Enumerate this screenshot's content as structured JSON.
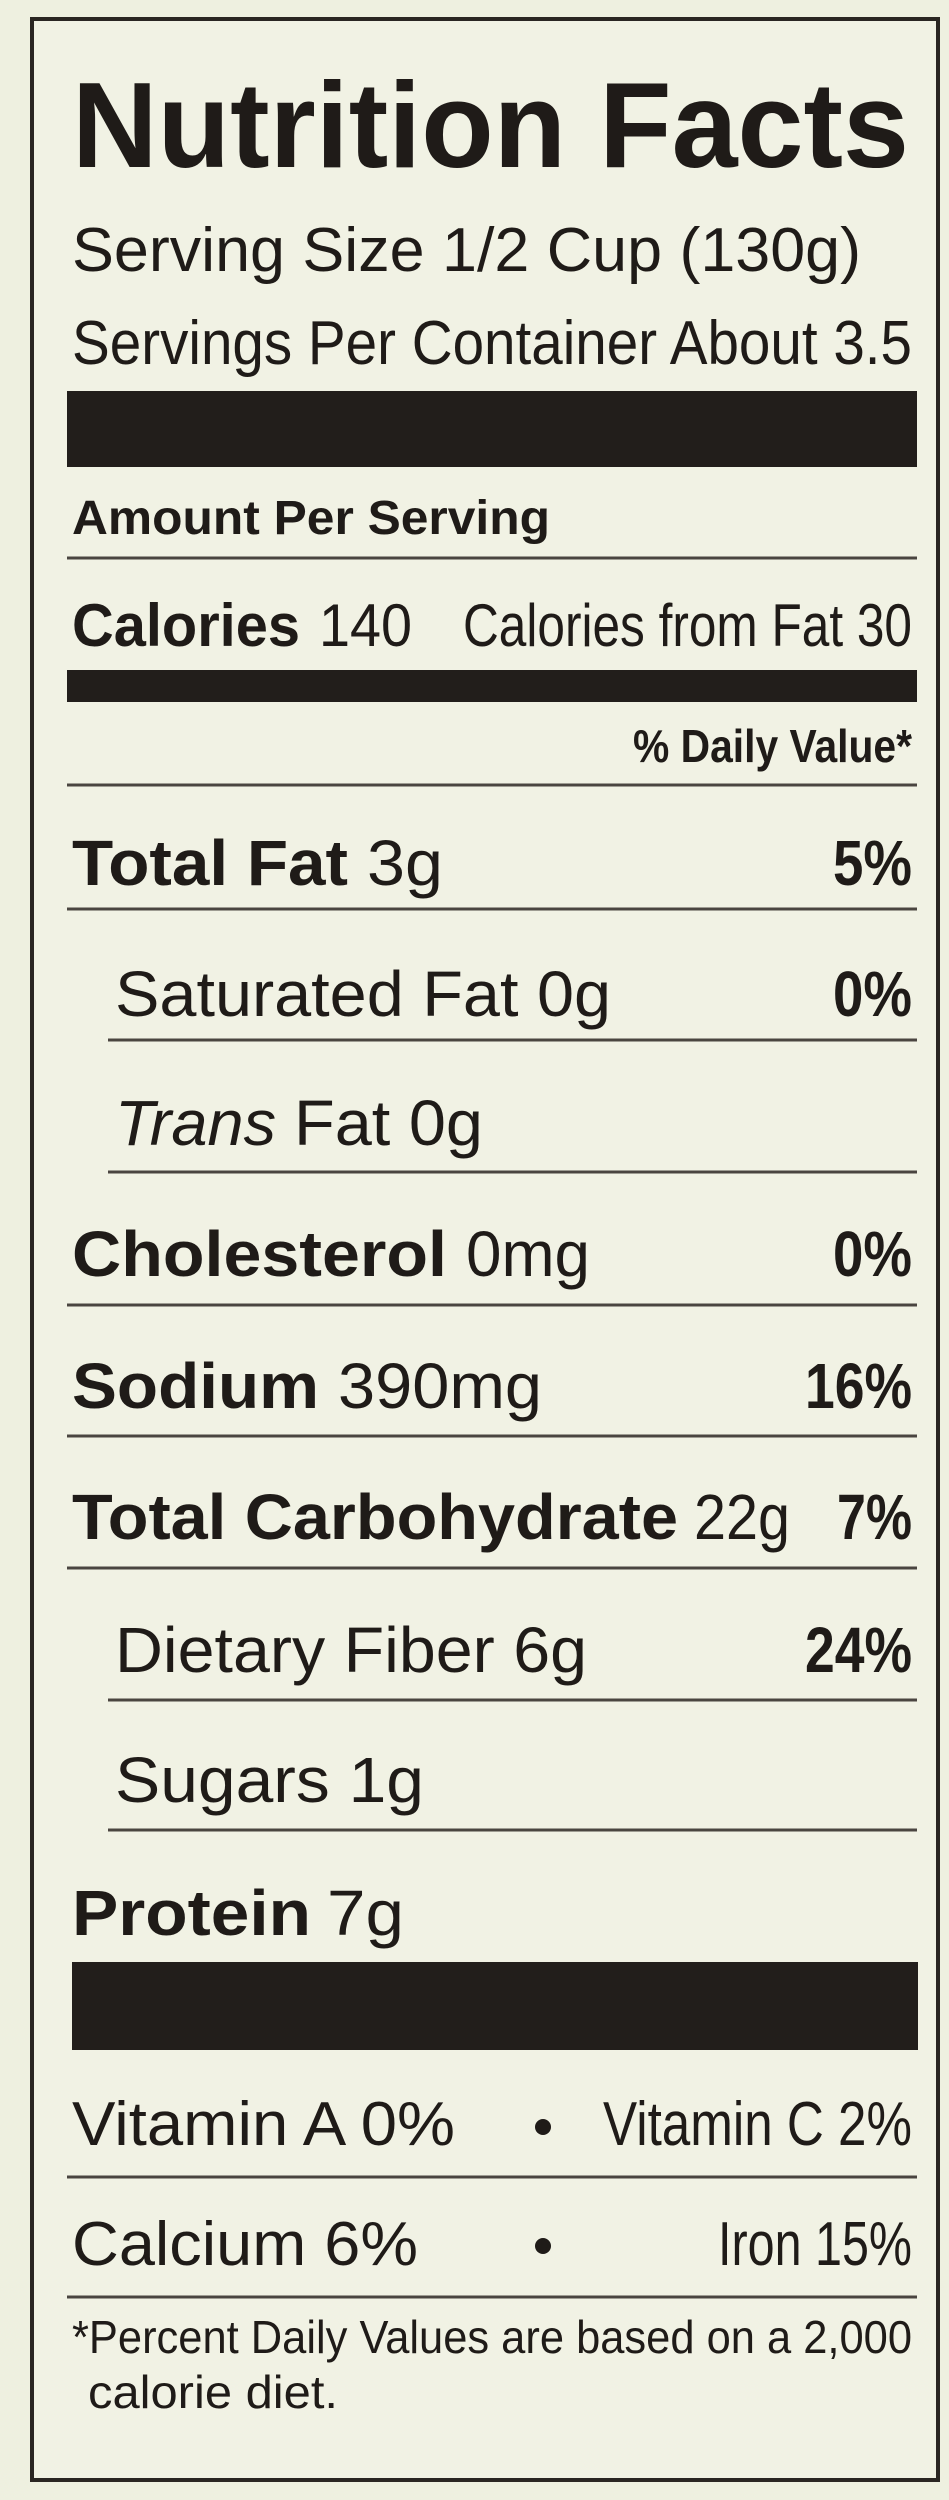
{
  "label": {
    "title": "Nutrition Facts",
    "serving_size": "Serving Size 1/2 Cup (130g)",
    "servings_per_container": "Servings Per Container About 3.5",
    "amount_per_serving": "Amount Per Serving",
    "calories": {
      "label": "Calories",
      "value": "140",
      "from_fat": "Calories from Fat 30"
    },
    "daily_value_header": "% Daily Value*",
    "nutrients": [
      {
        "name": "Total Fat",
        "amount": "3g",
        "dv": "5%"
      },
      {
        "name": "Saturated Fat 0g",
        "dv": "0%"
      },
      {
        "italic": "Trans",
        "name": "Fat 0g"
      },
      {
        "name": "Cholesterol",
        "amount": "0mg",
        "dv": "0%"
      },
      {
        "name": "Sodium",
        "amount": "390mg",
        "dv": "16%"
      },
      {
        "name": "Total Carbohydrate",
        "amount": "22g",
        "dv": "7%"
      },
      {
        "name": "Dietary Fiber 6g",
        "dv": "24%"
      },
      {
        "name": "Sugars 1g"
      },
      {
        "name": "Protein",
        "amount": "7g"
      }
    ],
    "vitamins": [
      [
        "Vitamin A 0%",
        "Vitamin C 2%"
      ],
      [
        "Calcium 6%",
        "Iron 15%"
      ]
    ],
    "footnote": [
      "*Percent Daily Values are based on a 2,000",
      "calorie diet."
    ]
  }
}
